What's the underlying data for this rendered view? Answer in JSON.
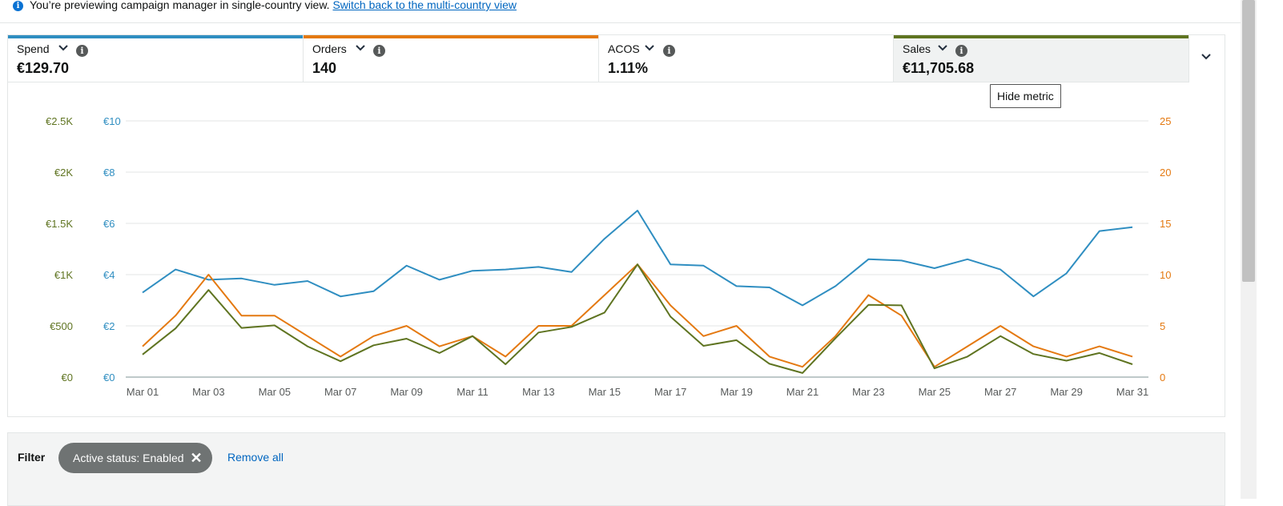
{
  "banner": {
    "text": "You’re previewing campaign manager in single-country view.",
    "link": "Switch back to the multi-country view"
  },
  "metrics": [
    {
      "name": "Spend",
      "value": "€129.70",
      "color": "#2f8ec1",
      "selected": false
    },
    {
      "name": "Orders",
      "value": "140",
      "color": "#e47911",
      "selected": false
    },
    {
      "name": "ACOS",
      "value": "1.11%",
      "color": "",
      "selected": false
    },
    {
      "name": "Sales",
      "value": "€11,705.68",
      "color": "#5f7421",
      "selected": true
    }
  ],
  "tooltip": "Hide metric",
  "chart_data": {
    "type": "line",
    "x": [
      "Mar 01",
      "Mar 02",
      "Mar 03",
      "Mar 04",
      "Mar 05",
      "Mar 06",
      "Mar 07",
      "Mar 08",
      "Mar 09",
      "Mar 10",
      "Mar 11",
      "Mar 12",
      "Mar 13",
      "Mar 14",
      "Mar 15",
      "Mar 16",
      "Mar 17",
      "Mar 18",
      "Mar 19",
      "Mar 20",
      "Mar 21",
      "Mar 22",
      "Mar 23",
      "Mar 24",
      "Mar 25",
      "Mar 26",
      "Mar 27",
      "Mar 28",
      "Mar 29",
      "Mar 30",
      "Mar 31"
    ],
    "x_tick_labels": [
      "Mar 01",
      "Mar 03",
      "Mar 05",
      "Mar 07",
      "Mar 09",
      "Mar 11",
      "Mar 13",
      "Mar 15",
      "Mar 17",
      "Mar 19",
      "Mar 21",
      "Mar 23",
      "Mar 25",
      "Mar 27",
      "Mar 29",
      "Mar 31"
    ],
    "axes": {
      "sales": {
        "ticks": [
          "€0",
          "€500",
          "€1K",
          "€1.5K",
          "€2K",
          "€2.5K"
        ],
        "ylim": [
          0,
          2500
        ],
        "color": "#5f7421"
      },
      "spend": {
        "ticks": [
          "€0",
          "€2",
          "€4",
          "€6",
          "€8",
          "€10"
        ],
        "ylim": [
          0,
          10
        ],
        "color": "#2f8ec1"
      },
      "orders": {
        "ticks": [
          "0",
          "5",
          "10",
          "15",
          "20",
          "25"
        ],
        "ylim": [
          0,
          25
        ],
        "color": "#e47911"
      }
    },
    "series": [
      {
        "name": "Spend",
        "axis": "spend",
        "color": "#2f8ec1",
        "values": [
          3.3,
          4.2,
          3.8,
          3.85,
          3.6,
          3.75,
          3.15,
          3.35,
          4.35,
          3.8,
          4.15,
          4.2,
          4.3,
          4.1,
          5.4,
          6.5,
          4.4,
          4.35,
          3.55,
          3.5,
          2.8,
          3.55,
          4.6,
          4.55,
          4.25,
          4.6,
          4.2,
          3.15,
          4.05,
          5.7,
          5.85
        ]
      },
      {
        "name": "Orders",
        "axis": "orders",
        "color": "#e47911",
        "values": [
          3,
          6,
          10,
          6,
          6,
          4,
          2,
          4,
          5,
          3,
          4,
          2,
          5,
          5,
          8,
          11,
          7,
          4,
          5,
          2,
          1,
          4,
          8,
          6,
          1,
          3,
          5,
          3,
          2,
          3,
          2
        ]
      },
      {
        "name": "Sales",
        "axis": "sales",
        "color": "#5f7421",
        "values": [
          220,
          475,
          850,
          480,
          505,
          300,
          155,
          310,
          375,
          235,
          400,
          125,
          435,
          490,
          630,
          1100,
          590,
          305,
          360,
          130,
          40,
          380,
          705,
          700,
          85,
          200,
          400,
          225,
          160,
          235,
          125
        ]
      }
    ],
    "grid": true
  },
  "filter": {
    "label": "Filter",
    "chip": "Active status: Enabled",
    "remove_all": "Remove all"
  }
}
